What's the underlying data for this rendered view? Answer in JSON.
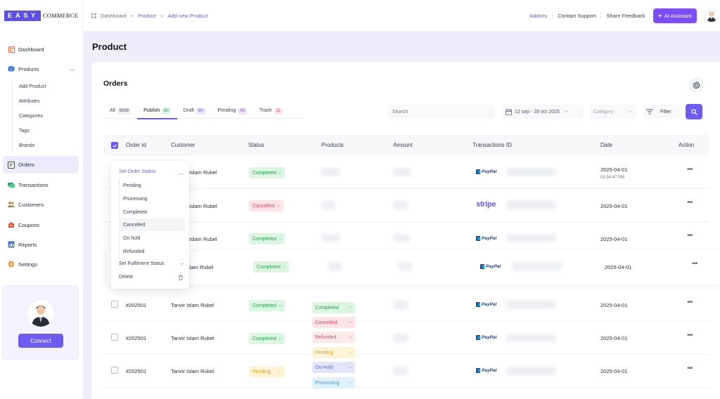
{
  "brand": {
    "logo_box": "EASY",
    "logo_text": "COMMERCE"
  },
  "breadcrumb": {
    "items": [
      "Dashboard",
      "Product",
      "Add new Product"
    ]
  },
  "topnav": {
    "addons": "Addons",
    "contact": "Contact Support",
    "feedback": "Share Feedback",
    "ai": "AI Assistant"
  },
  "sidebar": {
    "dashboard": "Dashboard",
    "products": "Products",
    "sub": [
      "Add Product",
      "Attributes",
      "Categories",
      "Tags",
      "Brands"
    ],
    "orders": "Orders",
    "transactions": "Transactions",
    "customers": "Customers",
    "coupons": "Coupons",
    "reports": "Reports",
    "settings": "Settings",
    "connect": "Connect"
  },
  "page": {
    "title": "Product",
    "card_title": "Orders"
  },
  "tabs": [
    {
      "label": "All",
      "count": "5000"
    },
    {
      "label": "Publish",
      "count": "80"
    },
    {
      "label": "Draft",
      "count": "60"
    },
    {
      "label": "Pending",
      "count": "60"
    },
    {
      "label": "Trash",
      "count": "11"
    }
  ],
  "toolbar": {
    "search_placeholder": "Search",
    "date_range": "12 sep - 28 oct 2025",
    "category": "Category",
    "filter": "Filter"
  },
  "table": {
    "headers": [
      "Order id",
      "Customer",
      "Status",
      "Products",
      "Amount",
      "Transactions ID",
      "Date",
      "Action"
    ],
    "rows": [
      {
        "id": "",
        "customer": "Islam Rubel",
        "status": "Completed",
        "gateway": "PayPal",
        "date": "2025-04-01",
        "time": "02:34:47 PM"
      },
      {
        "id": "",
        "customer": "Islam Rubel",
        "status": "Cancelled",
        "gateway": "stripe",
        "date": "2025-04-01"
      },
      {
        "id": "",
        "customer": "Islam Rubel",
        "status": "Completed",
        "gateway": "PayPal",
        "date": "2025-04-01"
      },
      {
        "id": "",
        "customer": "Islam Rubel",
        "status": "Completed",
        "gateway": "PayPal",
        "date": "2025-04-01"
      },
      {
        "id": "#202501",
        "customer": "Tanvir Islam Rubel",
        "status": "Completed",
        "gateway": "PayPal",
        "date": "2025-04-01"
      },
      {
        "id": "#202501",
        "customer": "Tanvir Islam Rubel",
        "status": "Completed",
        "gateway": "PayPal",
        "date": "2025-04-01"
      },
      {
        "id": "#202501",
        "customer": "Tanvir Islam Rubel",
        "status": "Pending",
        "gateway": "PayPal",
        "date": "2025-04-01"
      }
    ]
  },
  "dropdown": {
    "head": "Set Order Status",
    "items": [
      "Pending",
      "Processing",
      "Completed",
      "Cancelled",
      "On hold",
      "Refunded"
    ],
    "fulfilment": "Set Fulfilment Status",
    "delete": "Delete"
  },
  "status_options": [
    "Completed",
    "Cancelled",
    "Refunded",
    "Pending",
    "On Hold",
    "Processing"
  ],
  "colors": {
    "accent": "#6d5bf0",
    "ai_button": "#7b4dff",
    "background": "#eeeefb"
  }
}
